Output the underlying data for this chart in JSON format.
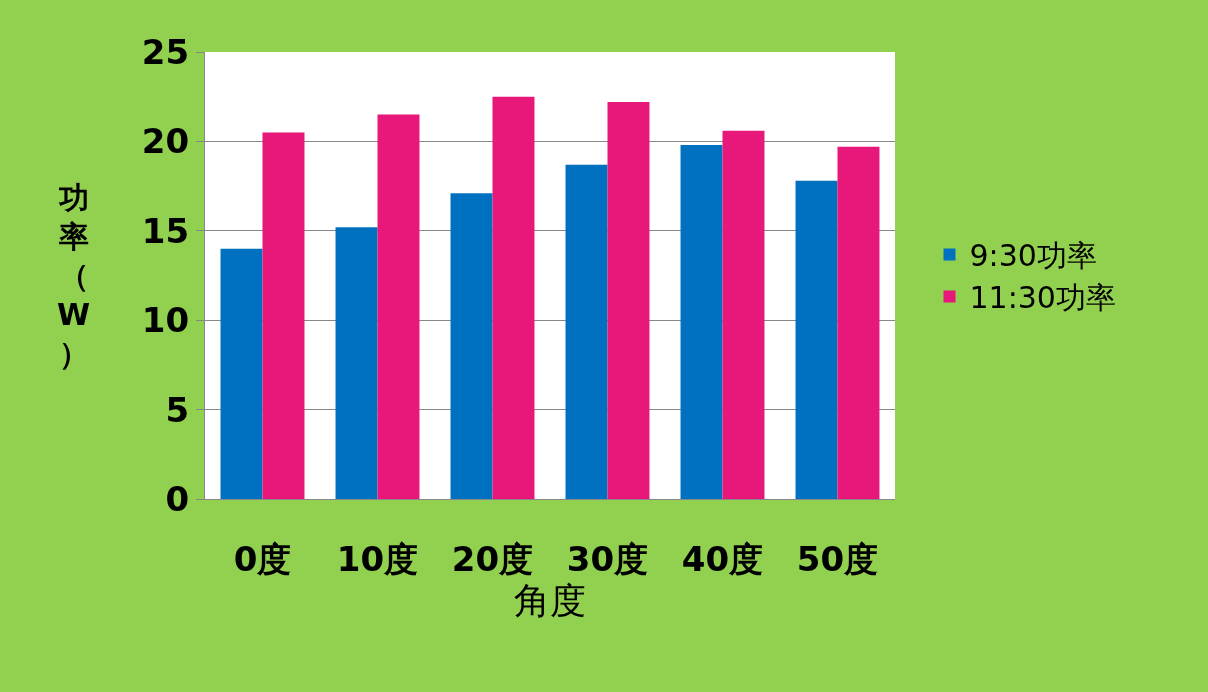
{
  "chart_data": {
    "type": "bar",
    "xlabel": "角度",
    "ylabel": "功率（W）",
    "categories": [
      "0度",
      "10度",
      "20度",
      "30度",
      "40度",
      "50度"
    ],
    "series": [
      {
        "name": "9:30功率",
        "color": "#0070c0",
        "values": [
          14.0,
          15.2,
          17.1,
          18.7,
          19.8,
          17.8
        ]
      },
      {
        "name": "11:30功率",
        "color": "#e8177a",
        "values": [
          20.5,
          21.5,
          22.5,
          22.2,
          20.6,
          19.7
        ]
      }
    ],
    "ylim": [
      0,
      25
    ],
    "yticks": [
      0,
      5,
      10,
      15,
      20,
      25
    ],
    "grid": "y",
    "legend": "right"
  }
}
